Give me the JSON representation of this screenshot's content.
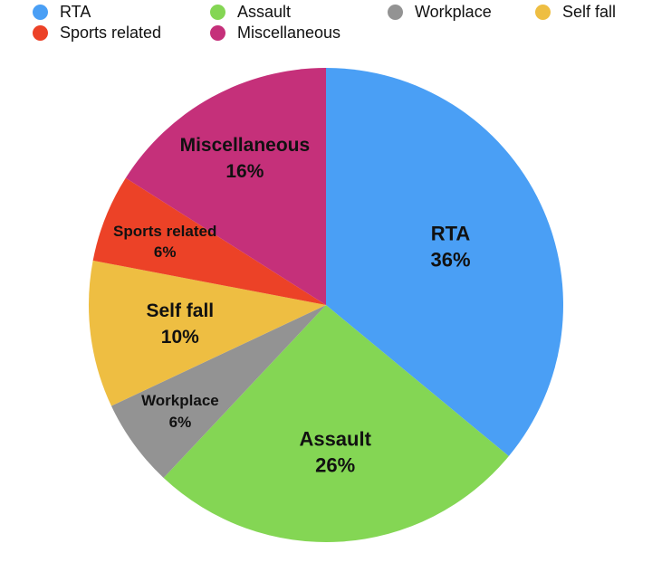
{
  "chart_data": {
    "type": "pie",
    "title": "",
    "legend_position": "top",
    "slices": [
      {
        "name": "RTA",
        "value": 36,
        "label": "RTA",
        "pct_label": "36%",
        "color": "#4A9FF5"
      },
      {
        "name": "Assault",
        "value": 26,
        "label": "Assault",
        "pct_label": "26%",
        "color": "#84D654"
      },
      {
        "name": "Workplace",
        "value": 6,
        "label": "Workplace",
        "pct_label": "6%",
        "color": "#939393"
      },
      {
        "name": "Self fall",
        "value": 10,
        "label": "Self fall",
        "pct_label": "10%",
        "color": "#EEBE42"
      },
      {
        "name": "Sports related",
        "value": 6,
        "label": "Sports related",
        "pct_label": "6%",
        "color": "#EC4227"
      },
      {
        "name": "Miscellaneous",
        "value": 16,
        "label": "Miscellaneous",
        "pct_label": "16%",
        "color": "#C5307A"
      }
    ],
    "legend": {
      "row1": [
        "RTA",
        "Assault",
        "Workplace",
        "Self fall"
      ],
      "row2": [
        "Sports related",
        "Miscellaneous"
      ]
    }
  }
}
